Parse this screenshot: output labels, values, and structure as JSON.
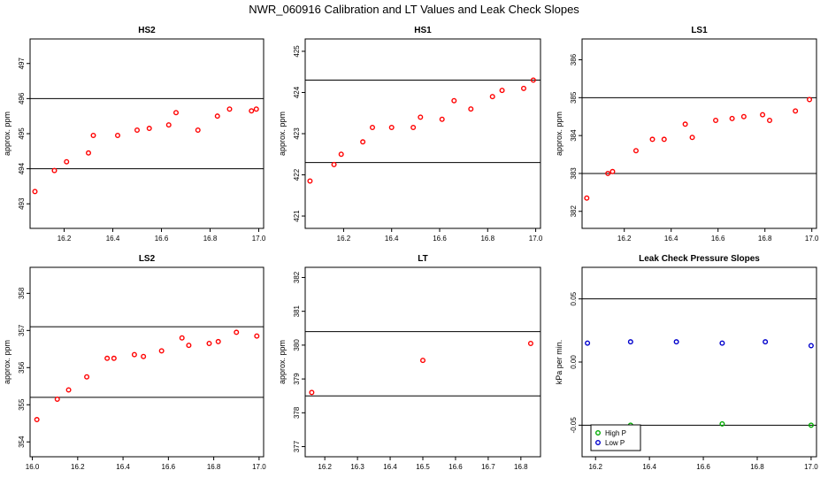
{
  "title": "NWR_060916 Calibration and LT Values and Leak Check Slopes",
  "chart_data": [
    {
      "type": "scatter",
      "title": "HS2",
      "ylabel": "approx. ppm",
      "xlim": [
        16.06,
        17.02
      ],
      "ylim": [
        492.3,
        497.7
      ],
      "xticks": [
        "16.2",
        "16.4",
        "16.6",
        "16.8",
        "17.0"
      ],
      "yticks": [
        "493",
        "494",
        "495",
        "496",
        "497"
      ],
      "hlines": [
        494.0,
        496.0
      ],
      "series": [
        {
          "color": "#ff0000",
          "points": [
            [
              16.08,
              493.35
            ],
            [
              16.16,
              493.95
            ],
            [
              16.21,
              494.2
            ],
            [
              16.3,
              494.45
            ],
            [
              16.32,
              494.95
            ],
            [
              16.42,
              494.95
            ],
            [
              16.5,
              495.1
            ],
            [
              16.55,
              495.15
            ],
            [
              16.63,
              495.25
            ],
            [
              16.66,
              495.6
            ],
            [
              16.75,
              495.1
            ],
            [
              16.83,
              495.5
            ],
            [
              16.88,
              495.7
            ],
            [
              16.97,
              495.65
            ],
            [
              16.99,
              495.7
            ]
          ]
        }
      ]
    },
    {
      "type": "scatter",
      "title": "HS1",
      "ylabel": "approx. ppm",
      "xlim": [
        16.04,
        17.02
      ],
      "ylim": [
        420.7,
        425.3
      ],
      "xticks": [
        "16.2",
        "16.4",
        "16.6",
        "16.8",
        "17.0"
      ],
      "yticks": [
        "421",
        "422",
        "423",
        "424",
        "425"
      ],
      "hlines": [
        422.3,
        424.3
      ],
      "series": [
        {
          "color": "#ff0000",
          "points": [
            [
              16.06,
              421.85
            ],
            [
              16.16,
              422.25
            ],
            [
              16.19,
              422.5
            ],
            [
              16.28,
              422.8
            ],
            [
              16.32,
              423.15
            ],
            [
              16.4,
              423.15
            ],
            [
              16.49,
              423.15
            ],
            [
              16.52,
              423.4
            ],
            [
              16.61,
              423.35
            ],
            [
              16.66,
              423.8
            ],
            [
              16.73,
              423.6
            ],
            [
              16.82,
              423.9
            ],
            [
              16.86,
              424.05
            ],
            [
              16.95,
              424.1
            ],
            [
              16.99,
              424.3
            ]
          ]
        }
      ]
    },
    {
      "type": "scatter",
      "title": "LS1",
      "ylabel": "approx. ppm",
      "xlim": [
        16.02,
        17.02
      ],
      "ylim": [
        381.55,
        386.55
      ],
      "xticks": [
        "16.2",
        "16.4",
        "16.6",
        "16.8",
        "17.0"
      ],
      "yticks": [
        "382",
        "383",
        "384",
        "385",
        "386"
      ],
      "hlines": [
        383.0,
        385.0
      ],
      "series": [
        {
          "color": "#ff0000",
          "points": [
            [
              16.04,
              382.35
            ],
            [
              16.13,
              383.0
            ],
            [
              16.15,
              383.05
            ],
            [
              16.25,
              383.6
            ],
            [
              16.32,
              383.9
            ],
            [
              16.37,
              383.9
            ],
            [
              16.46,
              384.3
            ],
            [
              16.49,
              383.95
            ],
            [
              16.59,
              384.4
            ],
            [
              16.66,
              384.45
            ],
            [
              16.71,
              384.5
            ],
            [
              16.79,
              384.55
            ],
            [
              16.82,
              384.4
            ],
            [
              16.93,
              384.65
            ],
            [
              16.99,
              384.95
            ]
          ]
        }
      ]
    },
    {
      "type": "scatter",
      "title": "LS2",
      "ylabel": "approx. ppm",
      "xlim": [
        15.99,
        17.02
      ],
      "ylim": [
        353.6,
        358.7
      ],
      "xticks": [
        "16.0",
        "16.2",
        "16.4",
        "16.6",
        "16.8",
        "17.0"
      ],
      "yticks": [
        "354",
        "355",
        "356",
        "357",
        "358"
      ],
      "hlines": [
        355.2,
        357.1
      ],
      "series": [
        {
          "color": "#ff0000",
          "points": [
            [
              16.02,
              354.6
            ],
            [
              16.11,
              355.15
            ],
            [
              16.16,
              355.4
            ],
            [
              16.24,
              355.75
            ],
            [
              16.33,
              356.25
            ],
            [
              16.36,
              356.25
            ],
            [
              16.45,
              356.35
            ],
            [
              16.49,
              356.3
            ],
            [
              16.57,
              356.45
            ],
            [
              16.66,
              356.8
            ],
            [
              16.69,
              356.6
            ],
            [
              16.78,
              356.65
            ],
            [
              16.82,
              356.7
            ],
            [
              16.9,
              356.95
            ],
            [
              16.99,
              356.85
            ]
          ]
        }
      ]
    },
    {
      "type": "scatter",
      "title": "LT",
      "ylabel": "approx. ppm",
      "xlim": [
        16.14,
        16.86
      ],
      "ylim": [
        376.7,
        382.3
      ],
      "xticks": [
        "16.2",
        "16.3",
        "16.4",
        "16.5",
        "16.6",
        "16.7",
        "16.8"
      ],
      "yticks": [
        "377",
        "378",
        "379",
        "380",
        "381",
        "382"
      ],
      "hlines": [
        378.5,
        380.4
      ],
      "series": [
        {
          "color": "#ff0000",
          "points": [
            [
              16.16,
              378.6
            ],
            [
              16.5,
              379.55
            ],
            [
              16.83,
              380.05
            ]
          ]
        }
      ]
    },
    {
      "type": "scatter",
      "title": "Leak Check Pressure Slopes",
      "ylabel": "kPa per min.",
      "xlim": [
        16.15,
        17.02
      ],
      "ylim": [
        -0.075,
        0.075
      ],
      "xticks": [
        "16.2",
        "16.4",
        "16.6",
        "16.8",
        "17.0"
      ],
      "yticks": [
        "-0.05",
        "0.00",
        "0.05"
      ],
      "hlines": [
        -0.05,
        0.05
      ],
      "legend": {
        "position": "bottom-left",
        "entries": [
          {
            "label": "High P",
            "color": "#00aa00"
          },
          {
            "label": "Low P",
            "color": "#0000cc"
          }
        ]
      },
      "series": [
        {
          "name": "High P",
          "color": "#00aa00",
          "points": [
            [
              16.33,
              -0.05
            ],
            [
              16.67,
              -0.049
            ],
            [
              17.0,
              -0.05
            ]
          ]
        },
        {
          "name": "Low P",
          "color": "#0000cc",
          "points": [
            [
              16.17,
              0.015
            ],
            [
              16.33,
              0.016
            ],
            [
              16.5,
              0.016
            ],
            [
              16.67,
              0.015
            ],
            [
              16.83,
              0.016
            ],
            [
              17.0,
              0.013
            ]
          ]
        }
      ]
    }
  ]
}
